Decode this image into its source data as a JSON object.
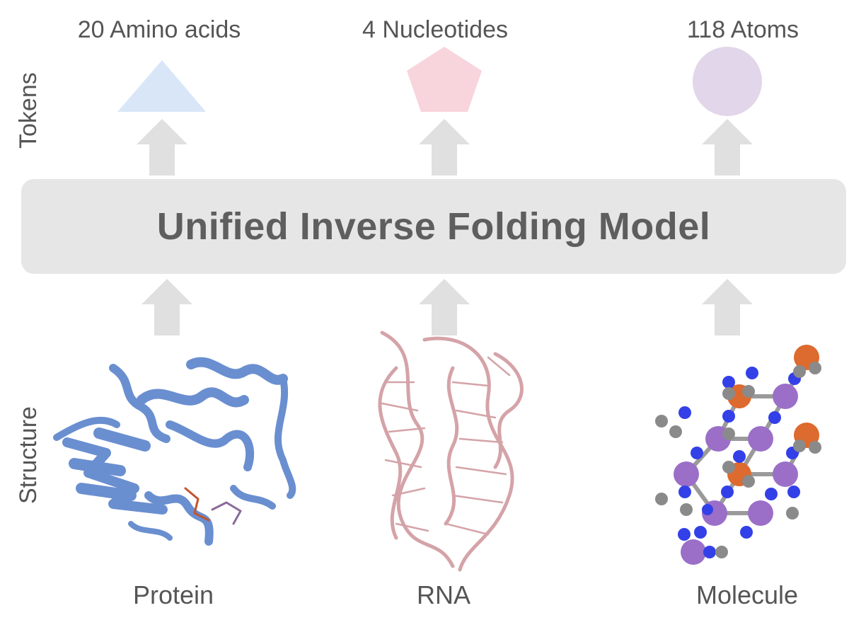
{
  "tokens": {
    "row_label": "Tokens",
    "protein_label": "20 Amino acids",
    "rna_label": "4 Nucleotides",
    "molecule_label": "118 Atoms",
    "protein_icon": "triangle-icon",
    "rna_icon": "pentagon-icon",
    "molecule_icon": "circle-icon",
    "protein_color": "#d8e6f8",
    "rna_color": "#f8d4dc",
    "molecule_color": "#e2d6ea"
  },
  "model": {
    "title": "Unified Inverse Folding Model",
    "box_color": "#e6e6e6"
  },
  "structure": {
    "row_label": "Structure",
    "protein_label": "Protein",
    "rna_label": "RNA",
    "molecule_label": "Molecule",
    "protein_color": "#6a8fd0",
    "rna_color": "#d4a3a8",
    "molecule_atom_colors": {
      "carbon_like": "#9b6fc8",
      "nitrogen_like": "#3340e8",
      "hydrogen_like": "#8a8a8a",
      "oxygen_like": "#dd6a2e"
    }
  },
  "arrows": {
    "color": "#e0e0e0"
  }
}
